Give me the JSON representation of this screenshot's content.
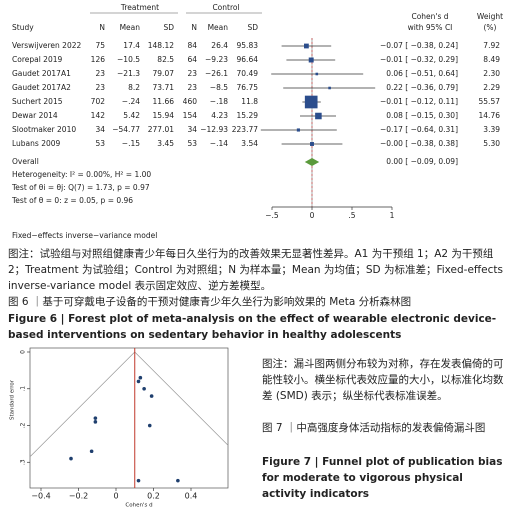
{
  "figure6": {
    "groups": [
      "Treatment",
      "Control"
    ],
    "columns": [
      "Study",
      "N",
      "Mean",
      "SD",
      "N",
      "Mean",
      "SD"
    ],
    "effect_header": [
      "Cohen's d",
      "with 95% CI"
    ],
    "weight_header": [
      "Weight",
      "(%)"
    ],
    "rows": [
      {
        "study": "Verswijveren 2022",
        "treatment": [
          "75",
          "17.4",
          "148.12"
        ],
        "control": [
          "84",
          "26.4",
          "95.83"
        ],
        "d": -0.07,
        "lo": -0.38,
        "hi": 0.24,
        "effect": "−0.07 [ −0.38,  0.24]",
        "weight": 7.92,
        "weight_label": "7.92"
      },
      {
        "study": "Corepal 2019",
        "treatment": [
          "126",
          "−10.5",
          "82.5"
        ],
        "control": [
          "64",
          "−9.23",
          "96.64"
        ],
        "d": -0.01,
        "lo": -0.32,
        "hi": 0.29,
        "effect": "−0.01 [ −0.32,  0.29]",
        "weight": 8.49,
        "weight_label": "8.49"
      },
      {
        "study": "Gaudet 2017A1",
        "treatment": [
          "23",
          "−21.3",
          "79.07"
        ],
        "control": [
          "23",
          "−26.1",
          "70.49"
        ],
        "d": 0.06,
        "lo": -0.51,
        "hi": 0.64,
        "effect": "0.06 [ −0.51,  0.64]",
        "weight": 2.3,
        "weight_label": "2.30"
      },
      {
        "study": "Gaudet 2017A2",
        "treatment": [
          "23",
          "8.2",
          "73.71"
        ],
        "control": [
          "23",
          "−8.5",
          "76.75"
        ],
        "d": 0.22,
        "lo": -0.36,
        "hi": 0.79,
        "effect": "0.22 [ −0.36,  0.79]",
        "weight": 2.29,
        "weight_label": "2.29"
      },
      {
        "study": "Suchert 2015",
        "treatment": [
          "702",
          "−.24",
          "11.66"
        ],
        "control": [
          "460",
          "−.18",
          "11.8"
        ],
        "d": -0.01,
        "lo": -0.12,
        "hi": 0.11,
        "effect": "−0.01 [ −0.12,  0.11]",
        "weight": 55.57,
        "weight_label": "55.57"
      },
      {
        "study": "Dewar 2014",
        "treatment": [
          "142",
          "5.42",
          "15.94"
        ],
        "control": [
          "154",
          "4.23",
          "15.29"
        ],
        "d": 0.08,
        "lo": -0.15,
        "hi": 0.3,
        "effect": "0.08 [ −0.15,  0.30]",
        "weight": 14.76,
        "weight_label": "14.76"
      },
      {
        "study": "Slootmaker 2010",
        "treatment": [
          "34",
          "−54.77",
          "277.01"
        ],
        "control": [
          "34",
          "−12.93",
          "223.77"
        ],
        "d": -0.17,
        "lo": -0.64,
        "hi": 0.31,
        "effect": "−0.17 [ −0.64,  0.31]",
        "weight": 3.39,
        "weight_label": "3.39"
      },
      {
        "study": "Lubans 2009",
        "treatment": [
          "53",
          "−.15",
          "3.45"
        ],
        "control": [
          "53",
          "−.14",
          "3.54"
        ],
        "d": 0,
        "lo": -0.38,
        "hi": 0.38,
        "effect": "−0.00 [ −0.38,  0.38]",
        "weight": 5.3,
        "weight_label": "5.30"
      }
    ],
    "overall": {
      "label": "Overall",
      "d": 0,
      "lo": -0.09,
      "hi": 0.09,
      "effect": "0.00 [ −0.09,  0.09]"
    },
    "stats": [
      "Heterogeneity: I² = 0.00%, H² = 1.00",
      "Test of θi = θj: Q(7) = 1.73, p = 0.97",
      "Test of θ = 0: z = 0.05, p = 0.96"
    ],
    "xlim": [
      -0.7,
      1.1
    ],
    "xticks": [
      {
        "value": -0.5,
        "label": "−.5"
      },
      0,
      {
        "value": 0.5,
        "label": ".5"
      },
      1
    ],
    "model": "Fixed−effects inverse−variance model",
    "note": "图注：试验组与对照组健康青少年每日久坐行为的改善效果无显著性差异。A1 为干预组 1；A2 为干预组 2；Treatment 为试验组；Control 为对照组；N 为样本量；Mean 为均值；SD 为标准差；Fixed-effects inverse-variance model 表示固定效应、逆方差模型。",
    "caption_cn": "图 6 ｜基于可穿戴电子设备的干预对健康青少年久坐行为影响效果的 Meta 分析森林图",
    "caption_en": "Figure 6  |  Forest plot of meta-analysis on the effect of wearable electronic device-based interventions on sedentary behavior in healthy adolescents"
  },
  "figure7": {
    "type": "scatter",
    "x": [
      0.12,
      0.13,
      0.15,
      0.19,
      0.18,
      -0.11,
      -0.11,
      -0.13,
      -0.24,
      0.12,
      0.33
    ],
    "values": [
      0.08,
      0.07,
      0.1,
      0.12,
      0.2,
      0.18,
      0.19,
      0.27,
      0.29,
      0.35,
      0.35
    ],
    "overall": 0.1,
    "xlim": [
      -0.47,
      0.55
    ],
    "ylim": [
      0,
      0.37
    ],
    "xticks": [
      {
        "value": -0.4,
        "label": "−0.4"
      },
      {
        "value": -0.2,
        "label": "−0.2"
      },
      0,
      0.2,
      0.4
    ],
    "yticks": [
      0,
      {
        "value": 0.1,
        "label": ".1"
      },
      {
        "value": 0.2,
        "label": ".2"
      },
      {
        "value": 0.3,
        "label": ".3"
      }
    ],
    "xlabel": "Cohen's d",
    "ylabel": "Standard error",
    "note": "图注：漏斗图两侧分布较为对称，存在发表偏倚的可能性较小。横坐标代表效应量的大小，以标准化均数差 (SMD) 表示；纵坐标代表标准误差。",
    "caption_cn": "图 7 ｜中高强度身体活动指标的发表偏倚漏斗图",
    "caption_en": "Figure 7  |  Funnel plot of publication bias for moderate to vigorous physical activity indicators"
  }
}
